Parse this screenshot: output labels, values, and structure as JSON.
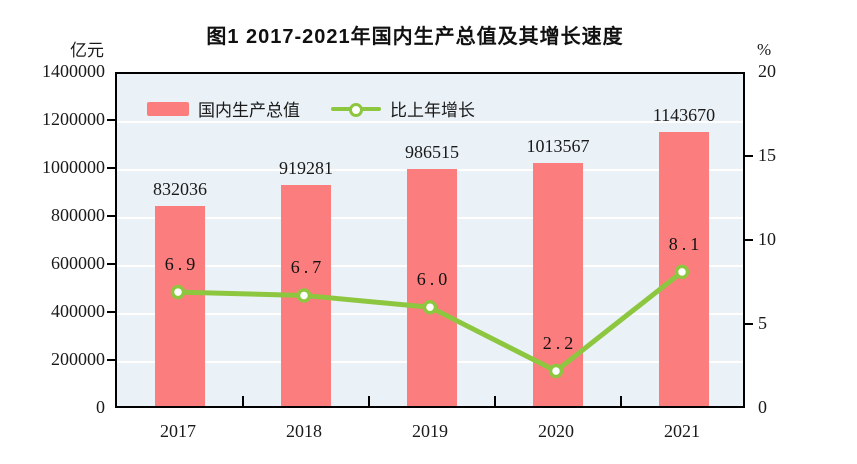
{
  "figure": {
    "title": "图1  2017-2021年国内生产总值及其增长速度",
    "left_axis_unit": "亿元",
    "right_axis_unit": "%"
  },
  "legend": {
    "bar_label": "国内生产总值",
    "line_label": "比上年增长"
  },
  "colors": {
    "bar": "#FC7D7D",
    "line": "#8DC63F",
    "marker_fill": "#FFFFFF",
    "plot_bg": "#EAF1F7",
    "grid": "#FFFFFF",
    "frame": "#000000",
    "text": "#1A1A1A"
  },
  "chart_data": {
    "type": "bar",
    "subtype": "bar+line combo, dual axis",
    "title": "图1  2017-2021年国内生产总值及其增长速度",
    "categories": [
      "2017",
      "2018",
      "2019",
      "2020",
      "2021"
    ],
    "series": [
      {
        "name": "国内生产总值",
        "type": "bar",
        "axis": "left",
        "unit": "亿元",
        "values": [
          832036,
          919281,
          986515,
          1013567,
          1143670
        ],
        "labels": [
          "832036",
          "919281",
          "986515",
          "1013567",
          "1143670"
        ]
      },
      {
        "name": "比上年增长",
        "type": "line",
        "axis": "right",
        "unit": "%",
        "values": [
          6.9,
          6.7,
          6.0,
          2.2,
          8.1
        ],
        "labels": [
          "6.9",
          "6.7",
          "6.0",
          "2.2",
          "8.1"
        ]
      }
    ],
    "left_axis": {
      "label": "亿元",
      "min": 0,
      "max": 1400000,
      "tick_labels": [
        "0",
        "200000",
        "400000",
        "600000",
        "800000",
        "1000000",
        "1200000",
        "1400000"
      ]
    },
    "right_axis": {
      "label": "%",
      "min": 0,
      "max": 20,
      "tick_labels": [
        "0",
        "5",
        "10",
        "15",
        "20"
      ]
    },
    "grid": true,
    "legend_position": "top-left-inside",
    "plot_background": "light-blue"
  }
}
